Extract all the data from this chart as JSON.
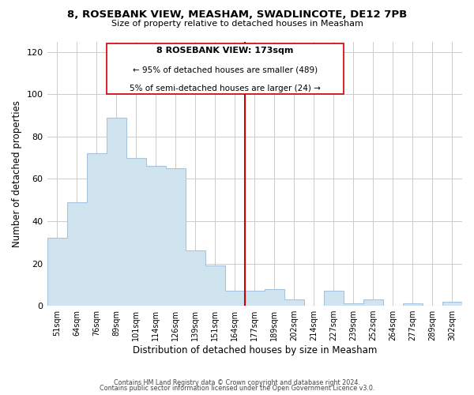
{
  "title": "8, ROSEBANK VIEW, MEASHAM, SWADLINCOTE, DE12 7PB",
  "subtitle": "Size of property relative to detached houses in Measham",
  "xlabel": "Distribution of detached houses by size in Measham",
  "ylabel": "Number of detached properties",
  "bar_color": "#d0e4f0",
  "bar_edge_color": "#a8c4dc",
  "categories": [
    "51sqm",
    "64sqm",
    "76sqm",
    "89sqm",
    "101sqm",
    "114sqm",
    "126sqm",
    "139sqm",
    "151sqm",
    "164sqm",
    "177sqm",
    "189sqm",
    "202sqm",
    "214sqm",
    "227sqm",
    "239sqm",
    "252sqm",
    "264sqm",
    "277sqm",
    "289sqm",
    "302sqm"
  ],
  "values": [
    32,
    49,
    72,
    89,
    70,
    66,
    65,
    26,
    19,
    7,
    7,
    8,
    3,
    0,
    7,
    1,
    3,
    0,
    1,
    0,
    2
  ],
  "ylim": [
    0,
    125
  ],
  "yticks": [
    0,
    20,
    40,
    60,
    80,
    100,
    120
  ],
  "vline_bin": 10,
  "vline_color": "#cc0000",
  "annotation_title": "8 ROSEBANK VIEW: 173sqm",
  "annotation_line1": "← 95% of detached houses are smaller (489)",
  "annotation_line2": "5% of semi-detached houses are larger (24) →",
  "footer1": "Contains HM Land Registry data © Crown copyright and database right 2024.",
  "footer2": "Contains public sector information licensed under the Open Government Licence v3.0."
}
